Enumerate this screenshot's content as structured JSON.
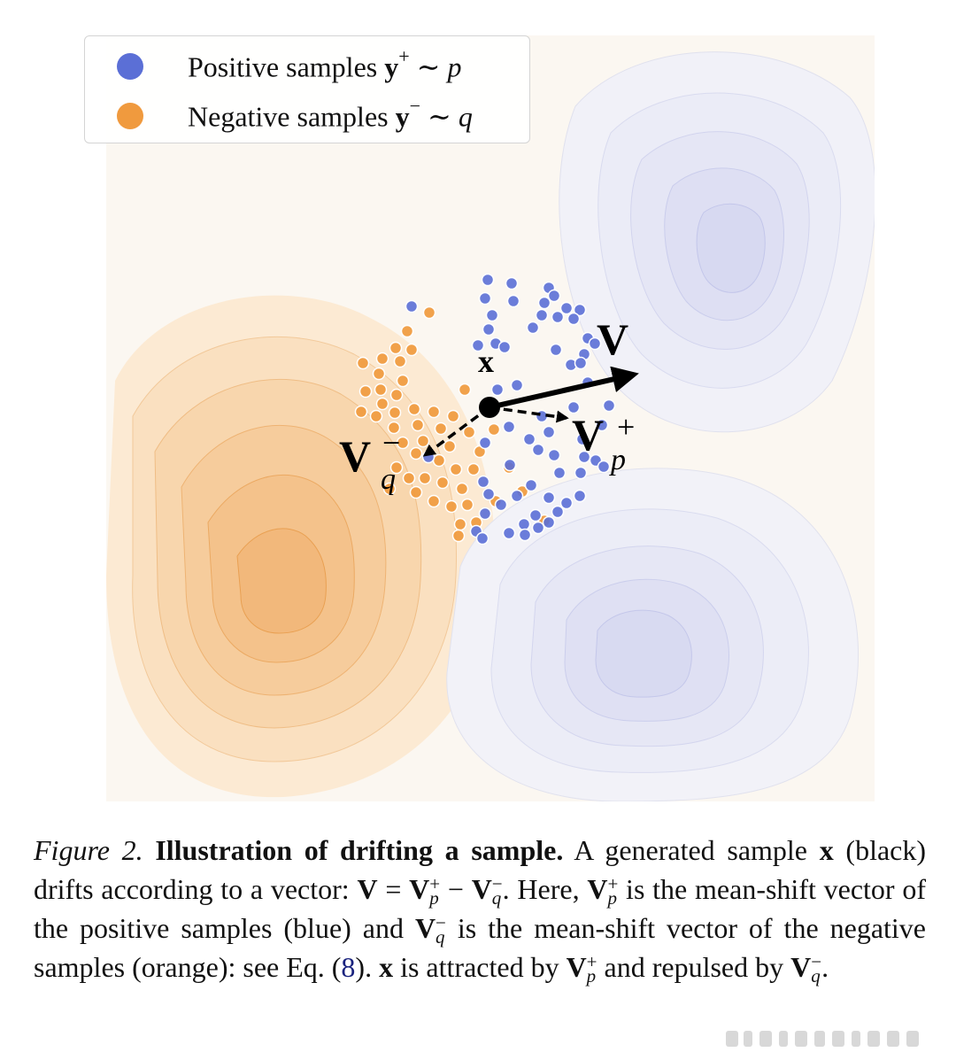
{
  "legend": {
    "positive": {
      "prefix": "Positive samples ",
      "var": "y",
      "sup": "+",
      "rest": " ∼ p",
      "color": "#5b6fd6"
    },
    "negative": {
      "prefix": "Negative samples ",
      "var": "y",
      "sup": "−",
      "rest": " ∼ q",
      "color": "#f09a3e"
    }
  },
  "labels": {
    "x": "x",
    "V": "V",
    "Vp_main": "V",
    "Vp_sup": "+",
    "Vp_sub": "p",
    "Vq_main": "V",
    "Vq_sup": "−",
    "Vq_sub": "q"
  },
  "colors": {
    "positive": "#5b6fd6",
    "negative": "#f09a3e",
    "positive_field": "#c9cdf0",
    "negative_field": "#f7d6ad",
    "arrow": "#000000",
    "link": "#1a237e"
  },
  "caption": {
    "fig_label": "Figure 2.",
    "title": "Illustration of drifting a sample.",
    "t1": " A generated sample ",
    "x": "x",
    "t2": " (black) drifts according to a vector: ",
    "eq_V": "V",
    "eq_eq": " = ",
    "eq_minus": " − ",
    "t3": ". Here, ",
    "t4": " is the mean-shift vector of the positive samples (blue) and ",
    "t5": " is the mean-shift vector of the negative samples (orange): see Eq. (",
    "eq_ref": "8",
    "t6": "). ",
    "t7": " is attracted by ",
    "t8": " and repulsed by ",
    "t9": "."
  }
}
